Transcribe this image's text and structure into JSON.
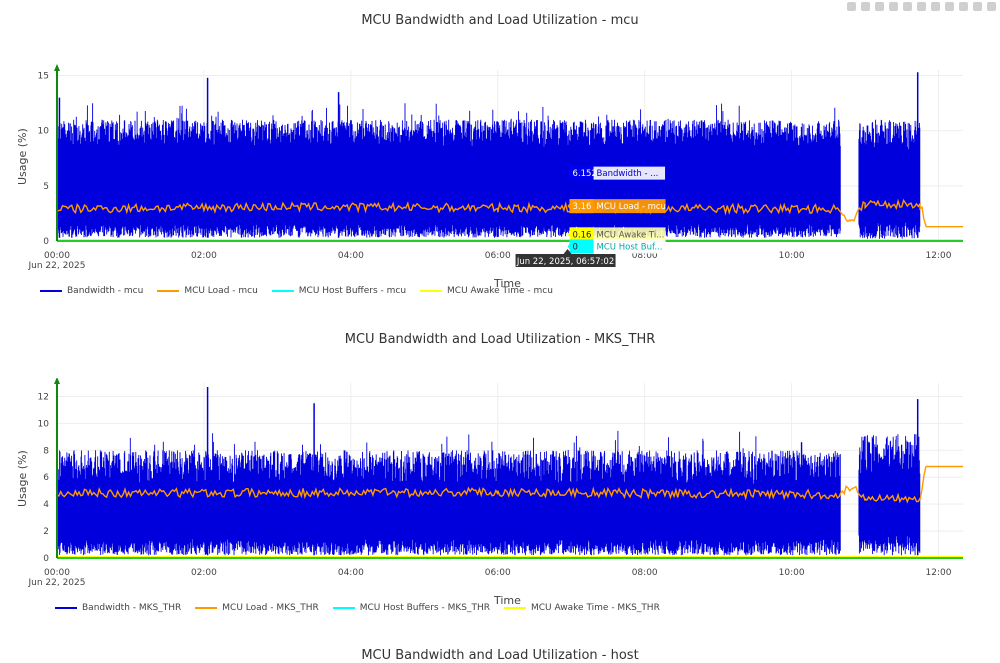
{
  "modebar": {
    "icons": [
      "camera-icon",
      "zoom-icon",
      "pan-icon",
      "zoom-in-icon",
      "zoom-out-icon",
      "autoscale-icon",
      "reset-icon",
      "spike-icon",
      "hover-icon",
      "compare-icon",
      "plotly-logo-icon"
    ]
  },
  "hover": {
    "timestamp": "Jun 22, 2025, 06:57:02",
    "labels": [
      {
        "value": "6.152",
        "name": "Bandwidth - ...",
        "color": "#0000ee"
      },
      {
        "value": "3.16",
        "name": "MCU Load - mcu",
        "color": "#ff9900"
      },
      {
        "value": "0.16",
        "name": "MCU Awake Ti...",
        "color": "#ffff00"
      },
      {
        "value": "0",
        "name": "MCU Host Buf...",
        "color": "#00ffff"
      }
    ]
  },
  "chart_data": [
    {
      "type": "line",
      "title": "MCU Bandwidth and Load Utilization - mcu",
      "xlabel": "Time",
      "ylabel": "Usage (%)",
      "ylim": [
        0,
        15.5
      ],
      "yticks": [
        "0",
        "5",
        "10",
        "15"
      ],
      "xlim": [
        "2025-06-22 00:00",
        "2025-06-22 12:20"
      ],
      "xticks": [
        "00:00",
        "02:00",
        "04:00",
        "06:00",
        "08:00",
        "10:00",
        "12:00"
      ],
      "xtick_date": "Jun 22, 2025",
      "grid": true,
      "legend_position": "bottom",
      "series": [
        {
          "name": "Bandwidth - mcu",
          "color": "#0000dd",
          "band": {
            "x": [
              "00:00",
              "10:40"
            ],
            "low": 0.3,
            "high": 11
          },
          "spikes": [
            {
              "x": "02:03",
              "y": 14.8
            },
            {
              "x": "03:50",
              "y": 13.5
            },
            {
              "x": "00:02",
              "y": 13
            },
            {
              "x": "11:43",
              "y": 15.3
            }
          ],
          "segment": {
            "x": [
              "10:55",
              "11:45"
            ],
            "low": 0.2,
            "high": 11
          }
        },
        {
          "name": "MCU Load - mcu",
          "color": "#ff9900",
          "points": [
            {
              "x": "00:00",
              "y": 2.9
            },
            {
              "x": "03:00",
              "y": 3.1
            },
            {
              "x": "06:00",
              "y": 3.0
            },
            {
              "x": "10:40",
              "y": 2.9
            },
            {
              "x": "10:48",
              "y": 1.6
            },
            {
              "x": "11:00",
              "y": 3.4
            },
            {
              "x": "11:45",
              "y": 3.3
            },
            {
              "x": "11:50",
              "y": 1.3
            },
            {
              "x": "12:20",
              "y": 1.3
            }
          ]
        },
        {
          "name": "MCU Host Buffers - mcu",
          "color": "#00ffff",
          "points": [
            {
              "x": "00:00",
              "y": 0.1
            },
            {
              "x": "12:20",
              "y": 0.1
            }
          ]
        },
        {
          "name": "MCU Awake Time - mcu",
          "color": "#ffff00",
          "points": [
            {
              "x": "00:00",
              "y": 0.12
            },
            {
              "x": "12:20",
              "y": 0.12
            }
          ]
        }
      ]
    },
    {
      "type": "line",
      "title": "MCU Bandwidth and Load Utilization - MKS_THR",
      "xlabel": "Time",
      "ylabel": "Usage (%)",
      "ylim": [
        0,
        13
      ],
      "yticks": [
        "0",
        "2",
        "4",
        "6",
        "8",
        "10",
        "12"
      ],
      "xlim": [
        "2025-06-22 00:00",
        "2025-06-22 12:20"
      ],
      "xticks": [
        "00:00",
        "02:00",
        "04:00",
        "06:00",
        "08:00",
        "10:00",
        "12:00"
      ],
      "xtick_date": "Jun 22, 2025",
      "grid": true,
      "legend_position": "bottom",
      "series": [
        {
          "name": "Bandwidth - MKS_THR",
          "color": "#0000dd",
          "band": {
            "x": [
              "00:00",
              "10:40"
            ],
            "low": 0.2,
            "high": 8
          },
          "spikes": [
            {
              "x": "02:03",
              "y": 12.7
            },
            {
              "x": "03:30",
              "y": 11.5
            },
            {
              "x": "11:43",
              "y": 11.8
            }
          ],
          "segment": {
            "x": [
              "10:55",
              "11:45"
            ],
            "low": 0.2,
            "high": 9.2
          }
        },
        {
          "name": "MCU Load - MKS_THR",
          "color": "#ff9900",
          "points": [
            {
              "x": "00:00",
              "y": 4.8
            },
            {
              "x": "06:00",
              "y": 4.9
            },
            {
              "x": "10:40",
              "y": 4.7
            },
            {
              "x": "10:48",
              "y": 5.3
            },
            {
              "x": "11:00",
              "y": 4.5
            },
            {
              "x": "11:45",
              "y": 4.5
            },
            {
              "x": "11:50",
              "y": 6.8
            },
            {
              "x": "12:20",
              "y": 6.8
            }
          ]
        },
        {
          "name": "MCU Host Buffers - MKS_THR",
          "color": "#00ffff",
          "points": [
            {
              "x": "00:00",
              "y": 0.05
            },
            {
              "x": "12:20",
              "y": 0.05
            }
          ]
        },
        {
          "name": "MCU Awake Time - MKS_THR",
          "color": "#ffff00",
          "points": [
            {
              "x": "00:00",
              "y": 0.1
            },
            {
              "x": "12:20",
              "y": 0.1
            }
          ]
        }
      ]
    },
    {
      "type": "line",
      "title": "MCU Bandwidth and Load Utilization - host"
    }
  ]
}
